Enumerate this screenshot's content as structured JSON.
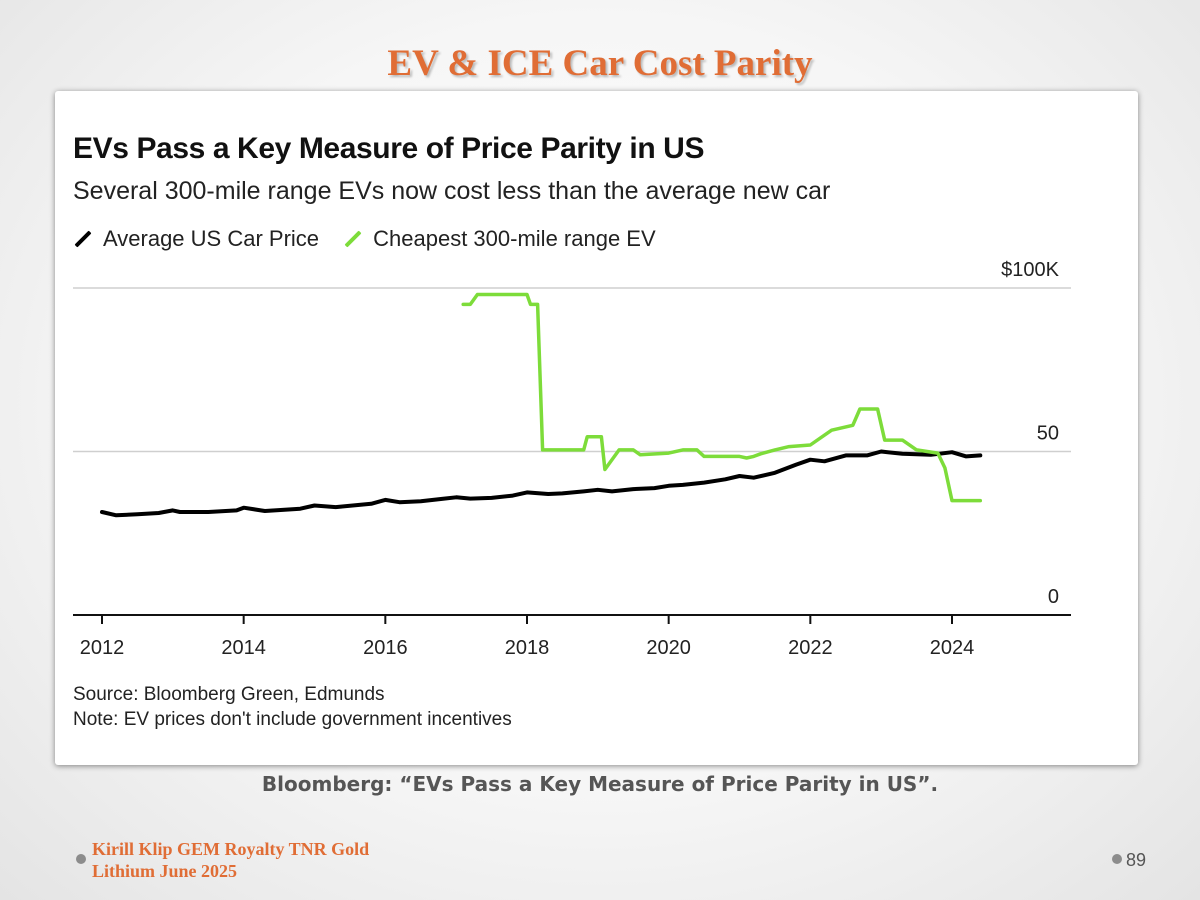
{
  "slide": {
    "title": "EV & ICE Car Cost Parity",
    "caption": "Bloomberg: “EVs Pass a Key Measure of Price Parity in US”.",
    "footer_line1": "Kirill Klip GEM Royalty TNR Gold",
    "footer_line2": "Lithium June 2025",
    "page_number": "89"
  },
  "chart_data": {
    "type": "line",
    "title": "EVs Pass a Key Measure of Price Parity in US",
    "subtitle": "Several 300-mile range EVs now cost less than the average new car",
    "source": "Source: Bloomberg Green, Edmunds",
    "note": "Note: EV prices don't include government incentives",
    "x_ticks": [
      "2012",
      "2014",
      "2016",
      "2018",
      "2020",
      "2022",
      "2024"
    ],
    "y_ticks": [
      {
        "value": 0,
        "label": "0"
      },
      {
        "value": 50,
        "label": "50"
      },
      {
        "value": 100,
        "label": "$100K"
      }
    ],
    "xlim": [
      2011.6,
      2026.2
    ],
    "ylim": [
      0,
      100
    ],
    "grid": true,
    "legend_position": "top-left",
    "series": [
      {
        "name": "Average US Car Price",
        "color": "#000000",
        "points": [
          [
            2012.0,
            31.5
          ],
          [
            2012.2,
            30.5
          ],
          [
            2012.5,
            30.8
          ],
          [
            2012.8,
            31.2
          ],
          [
            2013.0,
            32.0
          ],
          [
            2013.1,
            31.5
          ],
          [
            2013.5,
            31.5
          ],
          [
            2013.9,
            32.0
          ],
          [
            2014.0,
            32.8
          ],
          [
            2014.3,
            31.8
          ],
          [
            2014.8,
            32.5
          ],
          [
            2015.0,
            33.5
          ],
          [
            2015.3,
            33.0
          ],
          [
            2015.8,
            34.0
          ],
          [
            2016.0,
            35.2
          ],
          [
            2016.2,
            34.5
          ],
          [
            2016.5,
            34.8
          ],
          [
            2016.8,
            35.5
          ],
          [
            2017.0,
            36.0
          ],
          [
            2017.2,
            35.6
          ],
          [
            2017.5,
            35.8
          ],
          [
            2017.8,
            36.5
          ],
          [
            2018.0,
            37.5
          ],
          [
            2018.3,
            37.0
          ],
          [
            2018.5,
            37.2
          ],
          [
            2018.8,
            37.8
          ],
          [
            2019.0,
            38.3
          ],
          [
            2019.2,
            37.8
          ],
          [
            2019.5,
            38.5
          ],
          [
            2019.8,
            38.8
          ],
          [
            2020.0,
            39.5
          ],
          [
            2020.2,
            39.8
          ],
          [
            2020.5,
            40.5
          ],
          [
            2020.8,
            41.5
          ],
          [
            2021.0,
            42.5
          ],
          [
            2021.2,
            42.0
          ],
          [
            2021.5,
            43.5
          ],
          [
            2021.8,
            46.0
          ],
          [
            2022.0,
            47.5
          ],
          [
            2022.2,
            47.0
          ],
          [
            2022.5,
            48.8
          ],
          [
            2022.8,
            48.8
          ],
          [
            2023.0,
            50.0
          ],
          [
            2023.3,
            49.3
          ],
          [
            2023.7,
            49.0
          ],
          [
            2024.0,
            49.8
          ],
          [
            2024.2,
            48.5
          ],
          [
            2024.4,
            48.8
          ]
        ]
      },
      {
        "name": "Cheapest 300-mile range EV",
        "color": "#7ddc3a",
        "points": [
          [
            2017.1,
            95.0
          ],
          [
            2017.2,
            95.0
          ],
          [
            2017.3,
            98.0
          ],
          [
            2017.5,
            98.0
          ],
          [
            2018.0,
            98.0
          ],
          [
            2018.05,
            95.0
          ],
          [
            2018.15,
            95.0
          ],
          [
            2018.22,
            50.5
          ],
          [
            2018.5,
            50.5
          ],
          [
            2018.8,
            50.5
          ],
          [
            2018.85,
            54.5
          ],
          [
            2019.05,
            54.5
          ],
          [
            2019.1,
            44.5
          ],
          [
            2019.3,
            50.5
          ],
          [
            2019.5,
            50.5
          ],
          [
            2019.6,
            49.0
          ],
          [
            2020.0,
            49.5
          ],
          [
            2020.2,
            50.5
          ],
          [
            2020.4,
            50.5
          ],
          [
            2020.5,
            48.5
          ],
          [
            2021.0,
            48.5
          ],
          [
            2021.1,
            48.0
          ],
          [
            2021.2,
            48.5
          ],
          [
            2021.3,
            49.3
          ],
          [
            2021.5,
            50.5
          ],
          [
            2021.7,
            51.5
          ],
          [
            2022.0,
            52.0
          ],
          [
            2022.3,
            56.5
          ],
          [
            2022.6,
            58.0
          ],
          [
            2022.7,
            63.0
          ],
          [
            2022.95,
            63.0
          ],
          [
            2023.05,
            53.5
          ],
          [
            2023.3,
            53.5
          ],
          [
            2023.5,
            50.5
          ],
          [
            2023.8,
            49.5
          ],
          [
            2023.9,
            45.0
          ],
          [
            2024.0,
            35.0
          ],
          [
            2024.4,
            35.0
          ]
        ]
      }
    ]
  }
}
